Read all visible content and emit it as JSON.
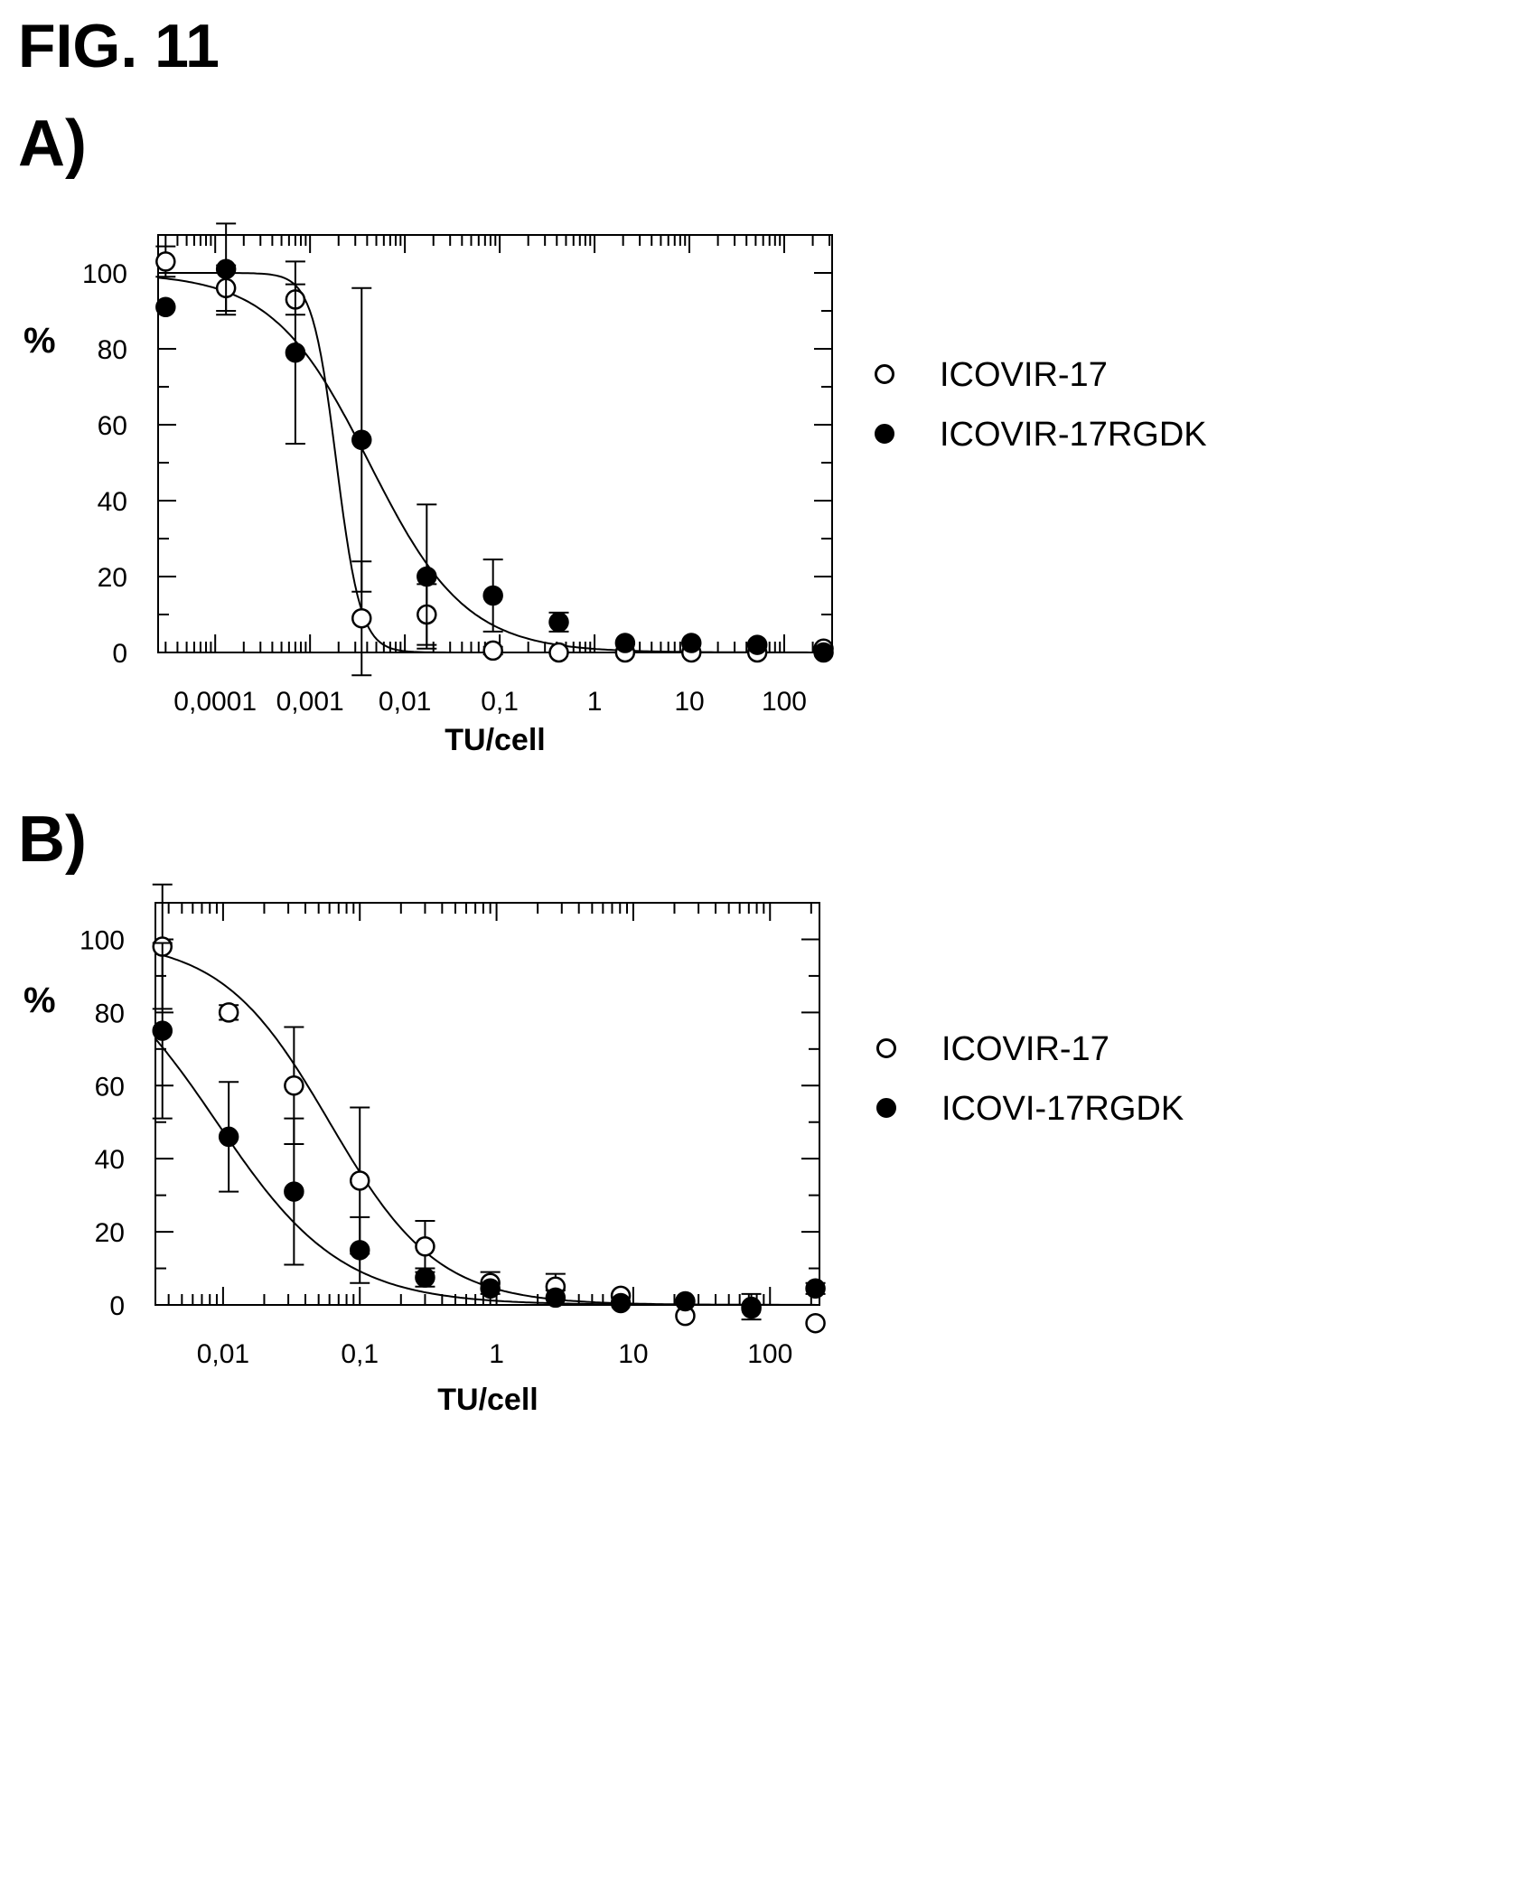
{
  "figure": {
    "title": "FIG. 11"
  },
  "panels": [
    {
      "label": "A)",
      "ylabel": "%",
      "xlabel": "TU/cell",
      "legend": [
        {
          "label": "ICOVIR-17",
          "marker": "open-circle"
        },
        {
          "label": "ICOVIR-17RGDK",
          "marker": "filled-circle"
        }
      ]
    },
    {
      "label": "B)",
      "ylabel": "%",
      "xlabel": "TU/cell",
      "legend": [
        {
          "label": "ICOVIR-17",
          "marker": "open-circle"
        },
        {
          "label": "ICOVI-17RGDK",
          "marker": "filled-circle"
        }
      ]
    }
  ],
  "chart_data": [
    {
      "type": "scatter",
      "xscale": "log",
      "xlim": [
        2.5e-05,
        320
      ],
      "ylim": [
        0,
        110
      ],
      "xticklabels": [
        {
          "v": 0.0001,
          "t": "0,0001"
        },
        {
          "v": 0.001,
          "t": "0,001"
        },
        {
          "v": 0.01,
          "t": "0,01"
        },
        {
          "v": 0.1,
          "t": "0,1"
        },
        {
          "v": 1,
          "t": "1"
        },
        {
          "v": 10,
          "t": "10"
        },
        {
          "v": 100,
          "t": "100"
        }
      ],
      "yticks": [
        0,
        20,
        40,
        60,
        80,
        100
      ],
      "series": [
        {
          "name": "ICOVIR-17",
          "marker": "open",
          "points": [
            {
              "x": 3e-05,
              "y": 103,
              "err": 4
            },
            {
              "x": 0.00013,
              "y": 96,
              "err": 6
            },
            {
              "x": 0.0007,
              "y": 93,
              "err": 4
            },
            {
              "x": 0.0035,
              "y": 9,
              "err": 15
            },
            {
              "x": 0.017,
              "y": 10,
              "err": 8
            },
            {
              "x": 0.085,
              "y": 0.5,
              "err": 1
            },
            {
              "x": 0.42,
              "y": 0,
              "err": 0
            },
            {
              "x": 2.1,
              "y": 0,
              "err": 0
            },
            {
              "x": 10.5,
              "y": 0,
              "err": 0
            },
            {
              "x": 52,
              "y": 0,
              "err": 0
            },
            {
              "x": 260,
              "y": 1,
              "err": 0
            }
          ],
          "fit": {
            "top": 100,
            "bottom": 0,
            "ec50": 0.0019,
            "hill": 3.4
          }
        },
        {
          "name": "ICOVIR-17RGDK",
          "marker": "filled",
          "points": [
            {
              "x": 3e-05,
              "y": 91,
              "err": 0
            },
            {
              "x": 0.00013,
              "y": 101,
              "err": 12
            },
            {
              "x": 0.0007,
              "y": 79,
              "err": 24
            },
            {
              "x": 0.0035,
              "y": 56,
              "err": 40
            },
            {
              "x": 0.017,
              "y": 20,
              "err": 19
            },
            {
              "x": 0.085,
              "y": 15,
              "err": 9.5
            },
            {
              "x": 0.42,
              "y": 8,
              "err": 2.5
            },
            {
              "x": 2.1,
              "y": 2.5,
              "err": 0
            },
            {
              "x": 10.5,
              "y": 2.5,
              "err": 0
            },
            {
              "x": 52,
              "y": 2,
              "err": 0
            },
            {
              "x": 260,
              "y": 0,
              "err": 0
            }
          ],
          "fit": {
            "top": 100,
            "bottom": 0,
            "ec50": 0.0042,
            "hill": 0.85
          }
        }
      ]
    },
    {
      "type": "scatter",
      "xscale": "log",
      "xlim": [
        0.0032,
        230
      ],
      "ylim": [
        0,
        110
      ],
      "xticklabels": [
        {
          "v": 0.01,
          "t": "0,01"
        },
        {
          "v": 0.1,
          "t": "0,1"
        },
        {
          "v": 1,
          "t": "1"
        },
        {
          "v": 10,
          "t": "10"
        },
        {
          "v": 100,
          "t": "100"
        }
      ],
      "yticks": [
        0,
        20,
        40,
        60,
        80,
        100
      ],
      "series": [
        {
          "name": "ICOVIR-17",
          "marker": "open",
          "points": [
            {
              "x": 0.0036,
              "y": 98,
              "err": 17
            },
            {
              "x": 0.011,
              "y": 80,
              "err": 2
            },
            {
              "x": 0.033,
              "y": 60,
              "err": 16
            },
            {
              "x": 0.1,
              "y": 34,
              "err": 20
            },
            {
              "x": 0.3,
              "y": 16,
              "err": 7
            },
            {
              "x": 0.9,
              "y": 6,
              "err": 3
            },
            {
              "x": 2.7,
              "y": 5,
              "err": 3.5
            },
            {
              "x": 8.1,
              "y": 2.5,
              "err": 0
            },
            {
              "x": 24,
              "y": -3,
              "err": 0
            },
            {
              "x": 73,
              "y": -1,
              "err": 0
            },
            {
              "x": 215,
              "y": -5,
              "err": 0
            }
          ],
          "fit": {
            "top": 100,
            "bottom": 0,
            "ec50": 0.06,
            "hill": 1.1
          }
        },
        {
          "name": "ICOVI-17RGDK",
          "marker": "filled",
          "points": [
            {
              "x": 0.0036,
              "y": 75,
              "err": 24
            },
            {
              "x": 0.011,
              "y": 46,
              "err": 15
            },
            {
              "x": 0.033,
              "y": 31,
              "err": 20
            },
            {
              "x": 0.1,
              "y": 15,
              "err": 9
            },
            {
              "x": 0.3,
              "y": 7.5,
              "err": 2.5
            },
            {
              "x": 0.9,
              "y": 4.5,
              "err": 0
            },
            {
              "x": 2.7,
              "y": 2,
              "err": 2
            },
            {
              "x": 8.1,
              "y": 0.5,
              "err": 0
            },
            {
              "x": 24,
              "y": 1,
              "err": 0
            },
            {
              "x": 73,
              "y": -0.5,
              "err": 3.5
            },
            {
              "x": 215,
              "y": 4.5,
              "err": 1.5
            }
          ],
          "fit": {
            "top": 100,
            "bottom": 0,
            "ec50": 0.009,
            "hill": 0.95
          }
        }
      ]
    }
  ]
}
